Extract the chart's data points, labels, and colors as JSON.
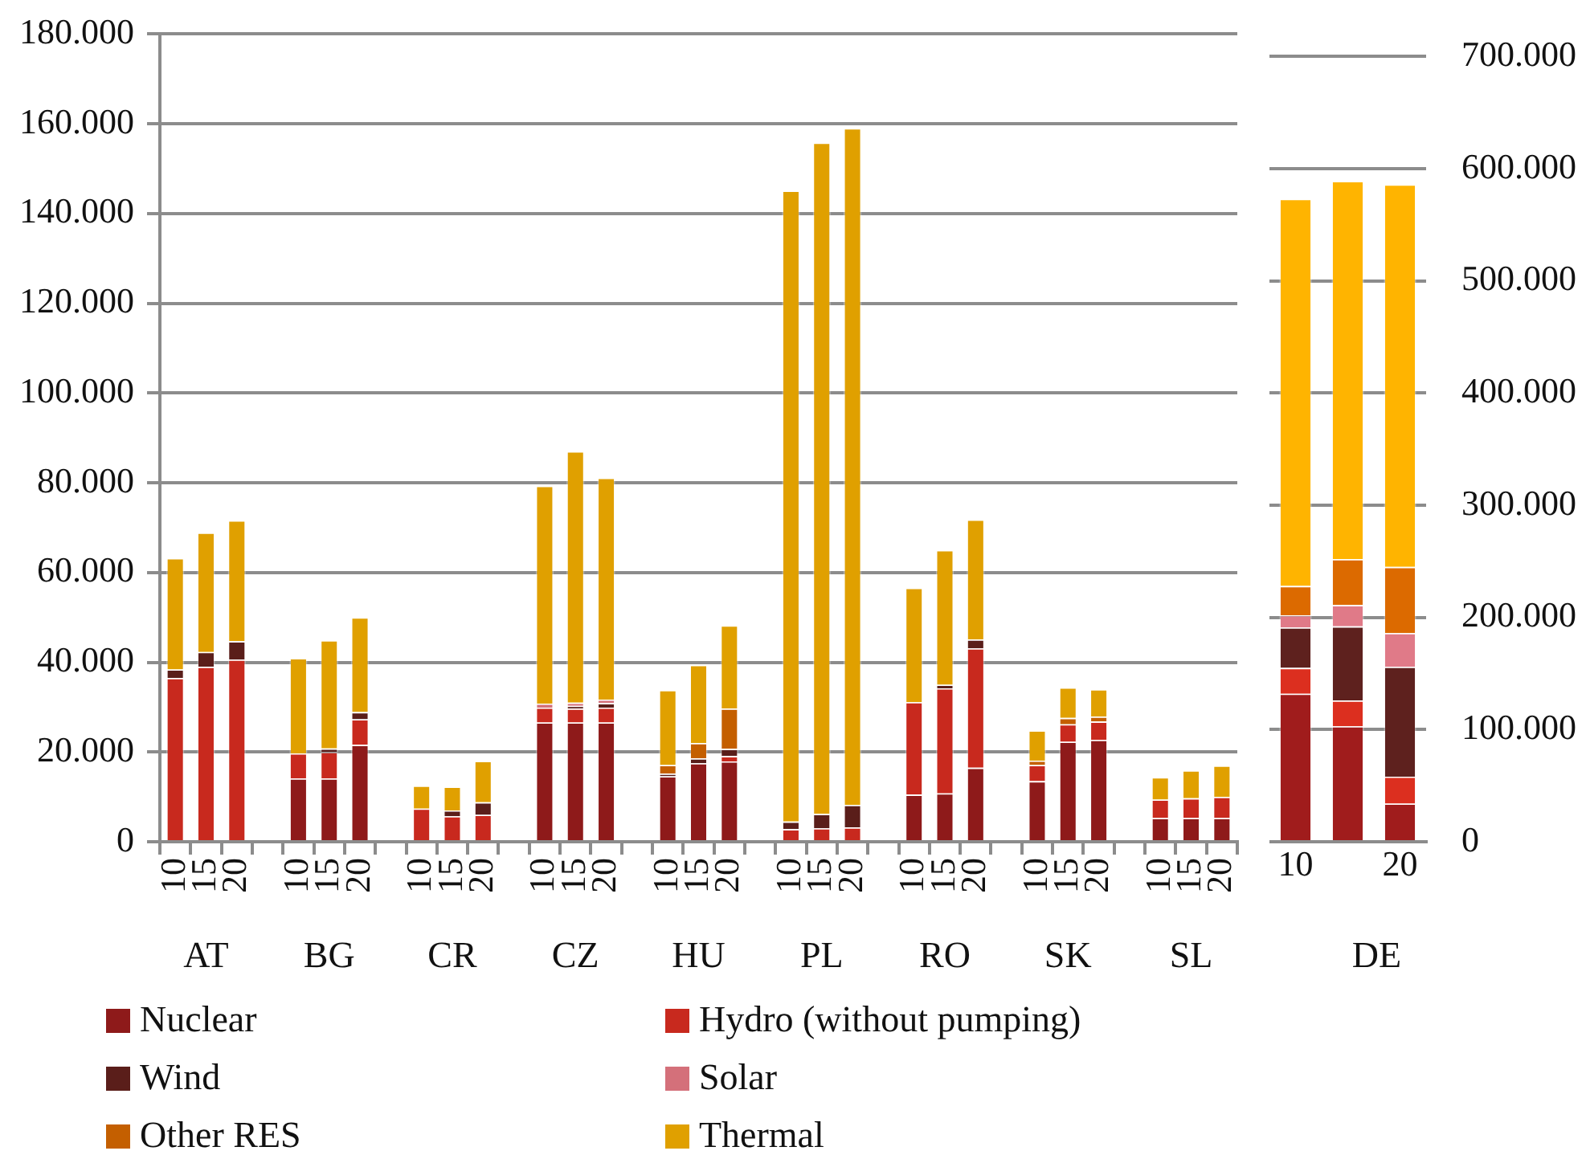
{
  "chart_data": [
    {
      "type": "bar",
      "stacked": true,
      "grid": "y",
      "legend": "bottom",
      "categories": [
        "10",
        "15",
        "20",
        null,
        "10",
        "15",
        "20",
        null,
        "10",
        "15",
        "20",
        null,
        "10",
        "15",
        "20",
        null,
        "10",
        "15",
        "20",
        null,
        "10",
        "15",
        "20",
        null,
        "10",
        "15",
        "20",
        null,
        "10",
        "15",
        "20",
        null,
        "10",
        "15",
        "20"
      ],
      "ylim": [
        0,
        180000
      ],
      "yticks": [
        {
          "value": 0,
          "label": "0"
        },
        {
          "value": 20000,
          "label": "20.000"
        },
        {
          "value": 40000,
          "label": "40.000"
        },
        {
          "value": 60000,
          "label": "60.000"
        },
        {
          "value": 80000,
          "label": "80.000"
        },
        {
          "value": 100000,
          "label": "100.000"
        },
        {
          "value": 120000,
          "label": "120.000"
        },
        {
          "value": 140000,
          "label": "140.000"
        },
        {
          "value": 160000,
          "label": "160.000"
        },
        {
          "value": 180000,
          "label": "180.000"
        }
      ],
      "annotations": [
        "AT",
        "BG",
        "CR",
        "CZ",
        "HU",
        "PL",
        "RO",
        "SK",
        "SL"
      ],
      "series": [
        {
          "name": "Nuclear",
          "color": "#8e1a1a",
          "values": [
            0,
            0,
            0,
            null,
            14100,
            14100,
            21600,
            null,
            0,
            0,
            0,
            null,
            26600,
            26600,
            26600,
            null,
            14600,
            17500,
            17900,
            null,
            0,
            0,
            0,
            null,
            10500,
            10800,
            16500,
            null,
            13500,
            22300,
            22700,
            null,
            5300,
            5300,
            5300
          ]
        },
        {
          "name": "Hydro (without pumping)",
          "color": "#c8291e",
          "values": [
            36500,
            39000,
            40600,
            null,
            5600,
            5900,
            5700,
            null,
            7400,
            5700,
            6000,
            null,
            3300,
            3100,
            3300,
            null,
            0,
            0,
            1200,
            null,
            2800,
            3000,
            3200,
            null,
            20600,
            23400,
            26600,
            null,
            3600,
            3900,
            4100,
            null,
            4100,
            4400,
            4700
          ]
        },
        {
          "name": "Wind",
          "color": "#5a1e1a",
          "values": [
            1900,
            3300,
            4100,
            null,
            0,
            800,
            1600,
            null,
            0,
            1300,
            2800,
            null,
            0,
            600,
            1000,
            null,
            600,
            1100,
            1600,
            null,
            1700,
            3200,
            5000,
            null,
            0,
            800,
            2000,
            null,
            0,
            0,
            0,
            null,
            0,
            0,
            0
          ]
        },
        {
          "name": "Solar",
          "color": "#d4707a",
          "values": [
            0,
            0,
            0,
            null,
            0,
            0,
            0,
            null,
            0,
            0,
            0,
            null,
            900,
            700,
            800,
            null,
            0,
            0,
            0,
            null,
            0,
            0,
            0,
            null,
            0,
            0,
            0,
            null,
            0,
            0,
            0,
            null,
            0,
            0,
            0
          ]
        },
        {
          "name": "Other RES",
          "color": "#c45f00",
          "values": [
            0,
            0,
            0,
            null,
            0,
            0,
            0,
            null,
            0,
            0,
            0,
            null,
            0,
            0,
            0,
            null,
            1900,
            3400,
            9000,
            null,
            0,
            0,
            0,
            null,
            0,
            0,
            0,
            null,
            1000,
            1400,
            1100,
            null,
            0,
            0,
            0
          ]
        },
        {
          "name": "Thermal",
          "color": "#e0a000",
          "values": [
            24800,
            26600,
            26900,
            null,
            21200,
            24100,
            21100,
            null,
            5100,
            5300,
            9200,
            null,
            48500,
            56000,
            49400,
            null,
            16700,
            17400,
            18500,
            null,
            140600,
            149600,
            150800,
            null,
            25500,
            30000,
            26700,
            null,
            6700,
            6800,
            6100,
            null,
            5000,
            6200,
            7000
          ]
        }
      ]
    },
    {
      "type": "bar",
      "stacked": true,
      "grid": "y",
      "categories": [
        "10",
        null,
        "20"
      ],
      "ylim": [
        0,
        700000
      ],
      "yticks": [
        {
          "value": 0,
          "label": "0"
        },
        {
          "value": 100000,
          "label": "100.000"
        },
        {
          "value": 200000,
          "label": "200.000"
        },
        {
          "value": 300000,
          "label": "300.000"
        },
        {
          "value": 400000,
          "label": "400.000"
        },
        {
          "value": 500000,
          "label": "500.000"
        },
        {
          "value": 600000,
          "label": "600.000"
        },
        {
          "value": 700000,
          "label": "700.000"
        }
      ],
      "annotations": [
        "DE"
      ],
      "series": [
        {
          "color": "#a01c1c",
          "values": [
            132000,
            103000,
            34000
          ]
        },
        {
          "color": "#dc2f1f",
          "values": [
            23000,
            23000,
            24000
          ]
        },
        {
          "color": "#5e211e",
          "values": [
            36000,
            66000,
            98000
          ]
        },
        {
          "color": "#e07a88",
          "values": [
            11000,
            19000,
            30000
          ]
        },
        {
          "color": "#dc6a00",
          "values": [
            26000,
            41000,
            59000
          ]
        },
        {
          "color": "#ffb400",
          "values": [
            345000,
            337000,
            341000
          ]
        }
      ]
    }
  ]
}
